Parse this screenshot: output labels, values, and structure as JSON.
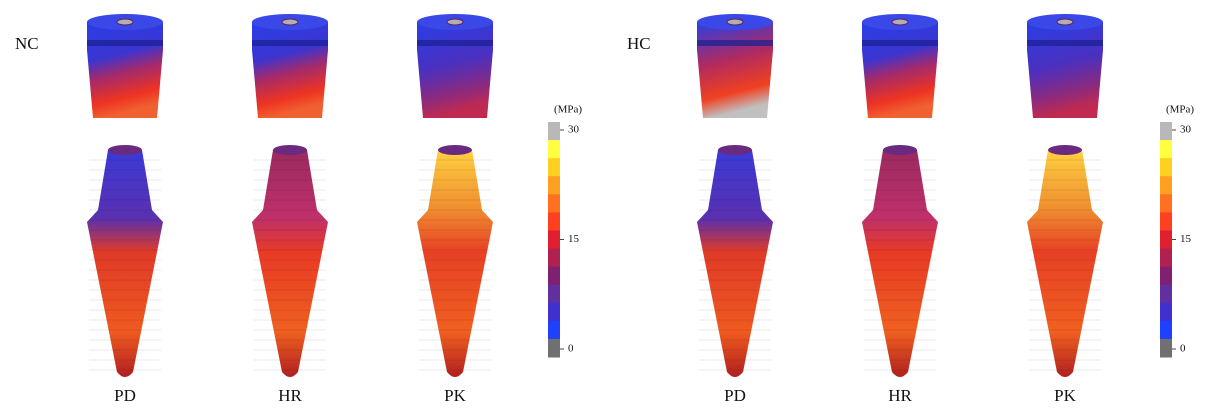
{
  "panels": [
    {
      "label": "NC",
      "columns": [
        "PD",
        "HR",
        "PK"
      ],
      "colorbar": {
        "unit": "(MPa)",
        "ticks": [
          0,
          15,
          30
        ]
      }
    },
    {
      "label": "HC",
      "columns": [
        "PD",
        "HR",
        "PK"
      ],
      "colorbar": {
        "unit": "(MPa)",
        "ticks": [
          0,
          15,
          30
        ]
      }
    }
  ]
}
